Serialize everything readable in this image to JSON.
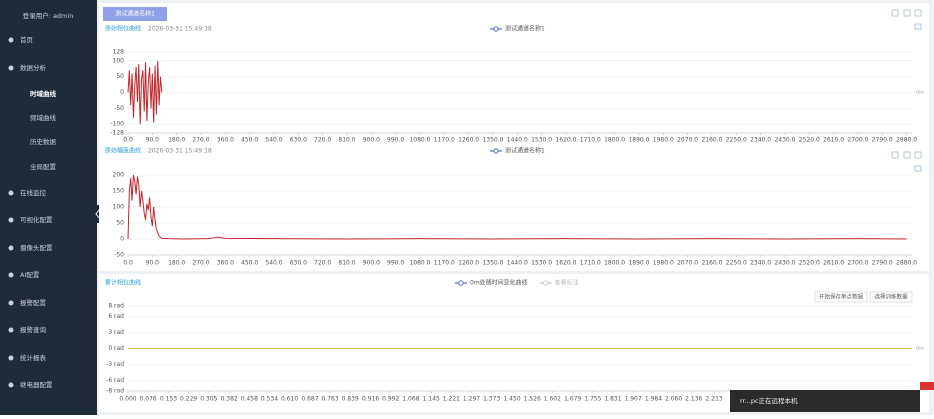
{
  "sidebar": {
    "user": "登录用户: admin",
    "menu": [
      "首页",
      "数据分析",
      "时域曲线",
      "频域曲线",
      "历史数据",
      "全局配置",
      "在线监控",
      "可视化配置",
      "摄像头配置",
      "AI配置",
      "报警配置",
      "报警查询",
      "统计报表",
      "继电器配置"
    ]
  },
  "tab": "测试通道名称1",
  "toast": "rr...pc正在远程本机",
  "chart_data": [
    {
      "type": "line",
      "title": "原始相位曲线",
      "subtitle": "2026-03-31 15:49:18",
      "annotation": "0m",
      "legend_color": "#5470c6",
      "x": [
        0,
        5,
        10,
        15,
        20,
        25,
        30,
        35,
        40,
        45,
        50,
        55,
        60,
        65,
        70,
        75,
        80,
        85,
        90,
        95,
        100,
        105,
        110,
        115,
        120,
        125
      ],
      "series": [
        {
          "name": "测试通道名称1",
          "color": "#c0262d",
          "values": [
            0,
            70,
            -40,
            60,
            -80,
            20,
            80,
            -30,
            90,
            -100,
            40,
            70,
            -60,
            95,
            -90,
            30,
            80,
            -50,
            60,
            -95,
            85,
            -70,
            100,
            -40,
            50,
            0
          ]
        }
      ],
      "xlim": [
        0,
        2900
      ],
      "ylim": [
        -128,
        128
      ],
      "yticks": [
        128,
        100,
        50,
        0,
        -50,
        -100,
        -128
      ],
      "xticks": [
        {
          "value": 0,
          "label": "0.0"
        },
        {
          "value": 90,
          "label": "90.0"
        },
        {
          "value": 180,
          "label": "180.0"
        },
        {
          "value": 270,
          "label": "270.0"
        },
        {
          "value": 360,
          "label": "360.0"
        },
        {
          "value": 450,
          "label": "450.0"
        },
        {
          "value": 540,
          "label": "540.0"
        },
        {
          "value": 630,
          "label": "630.0"
        },
        {
          "value": 720,
          "label": "720.0"
        },
        {
          "value": 810,
          "label": "810.0"
        },
        {
          "value": 900,
          "label": "900.0"
        },
        {
          "value": 990,
          "label": "990.0"
        },
        {
          "value": 1080,
          "label": "1080.0"
        },
        {
          "value": 1170,
          "label": "1170.0"
        },
        {
          "value": 1260,
          "label": "1260.0"
        },
        {
          "value": 1350,
          "label": "1350.0"
        },
        {
          "value": 1440,
          "label": "1440.0"
        },
        {
          "value": 1530,
          "label": "1530.0"
        },
        {
          "value": 1620,
          "label": "1620.0"
        },
        {
          "value": 1710,
          "label": "1710.0"
        },
        {
          "value": 1800,
          "label": "1800.0"
        },
        {
          "value": 1890,
          "label": "1890.0"
        },
        {
          "value": 1980,
          "label": "1980.0"
        },
        {
          "value": 2070,
          "label": "2070.0"
        },
        {
          "value": 2160,
          "label": "2160.0"
        },
        {
          "value": 2250,
          "label": "2250.0"
        },
        {
          "value": 2340,
          "label": "2340.0"
        },
        {
          "value": 2430,
          "label": "2430.0"
        },
        {
          "value": 2520,
          "label": "2520.0"
        },
        {
          "value": 2610,
          "label": "2610.0"
        },
        {
          "value": 2700,
          "label": "2700.0"
        },
        {
          "value": 2790,
          "label": "2790.0"
        },
        {
          "value": 2880,
          "label": "2880.0"
        }
      ],
      "grid": true
    },
    {
      "type": "line",
      "title": "原始幅度曲线",
      "subtitle": "2026-03-31 15:49:18",
      "legend_color": "#5470c6",
      "x": [
        0,
        5,
        10,
        15,
        20,
        25,
        30,
        35,
        40,
        45,
        50,
        55,
        60,
        65,
        70,
        75,
        80,
        85,
        90,
        95,
        100,
        105,
        110,
        115,
        120,
        125,
        150,
        200,
        300,
        330,
        360,
        540,
        810,
        1080,
        1350,
        1620,
        1890,
        2160,
        2430,
        2700,
        2880
      ],
      "series": [
        {
          "name": "测试通道名称1",
          "color": "#c0262d",
          "values": [
            0,
            150,
            190,
            120,
            200,
            180,
            140,
            195,
            170,
            100,
            150,
            120,
            80,
            60,
            110,
            90,
            130,
            70,
            40,
            100,
            60,
            30,
            20,
            10,
            5,
            2,
            1,
            0,
            1,
            6,
            2,
            1,
            0,
            1,
            0,
            1,
            0,
            1,
            0,
            1,
            0
          ]
        }
      ],
      "xlim": [
        0,
        2900
      ],
      "ylim": [
        -50,
        200
      ],
      "yticks": [
        200,
        150,
        100,
        50,
        0,
        -50
      ],
      "xticks": [
        {
          "value": 0,
          "label": "0.0"
        },
        {
          "value": 90,
          "label": "90.0"
        },
        {
          "value": 180,
          "label": "180.0"
        },
        {
          "value": 270,
          "label": "270.0"
        },
        {
          "value": 360,
          "label": "360.0"
        },
        {
          "value": 450,
          "label": "450.0"
        },
        {
          "value": 540,
          "label": "540.0"
        },
        {
          "value": 630,
          "label": "630.0"
        },
        {
          "value": 720,
          "label": "720.0"
        },
        {
          "value": 810,
          "label": "810.0"
        },
        {
          "value": 900,
          "label": "900.0"
        },
        {
          "value": 990,
          "label": "990.0"
        },
        {
          "value": 1080,
          "label": "1080.0"
        },
        {
          "value": 1170,
          "label": "1170.0"
        },
        {
          "value": 1260,
          "label": "1260.0"
        },
        {
          "value": 1350,
          "label": "1350.0"
        },
        {
          "value": 1440,
          "label": "1440.0"
        },
        {
          "value": 1530,
          "label": "1530.0"
        },
        {
          "value": 1620,
          "label": "1620.0"
        },
        {
          "value": 1710,
          "label": "1710.0"
        },
        {
          "value": 1800,
          "label": "1800.0"
        },
        {
          "value": 1890,
          "label": "1890.0"
        },
        {
          "value": 1980,
          "label": "1980.0"
        },
        {
          "value": 2070,
          "label": "2070.0"
        },
        {
          "value": 2160,
          "label": "2160.0"
        },
        {
          "value": 2250,
          "label": "2250.0"
        },
        {
          "value": 2340,
          "label": "2340.0"
        },
        {
          "value": 2430,
          "label": "2430.0"
        },
        {
          "value": 2520,
          "label": "2520.0"
        },
        {
          "value": 2610,
          "label": "2610.0"
        },
        {
          "value": 2700,
          "label": "2700.0"
        },
        {
          "value": 2790,
          "label": "2790.0"
        },
        {
          "value": 2880,
          "label": "2880.0"
        }
      ],
      "grid": true
    },
    {
      "type": "line",
      "title": "累计相位曲线",
      "annotation": "0m",
      "legend_color": "#5470c6",
      "buttons": [
        "开始保存单点数据",
        "选择训练数据"
      ],
      "x": [
        0,
        0.5,
        1,
        1.5,
        2,
        2.5,
        2.96
      ],
      "series": [
        {
          "name": "0m处随时间变化曲线",
          "color": "#c8c040",
          "values": [
            0,
            0,
            0,
            0,
            0,
            0,
            0
          ]
        },
        {
          "name": "查看标注",
          "color": "#cccccc",
          "values": [
            null,
            null,
            null,
            null,
            null,
            null,
            null
          ]
        }
      ],
      "xlim": [
        0,
        2.96
      ],
      "ylim": [
        -8,
        8
      ],
      "yticks": [
        {
          "value": 8,
          "label": "8 rad"
        },
        {
          "value": 6,
          "label": "6 rad"
        },
        {
          "value": 3,
          "label": "3 rad"
        },
        {
          "value": 0,
          "label": "0 rad"
        },
        {
          "value": -3,
          "label": "-3 rad"
        },
        {
          "value": -6,
          "label": "-6 rad"
        },
        {
          "value": -8,
          "label": "-8 rad"
        }
      ],
      "xticks": [
        {
          "value": 0,
          "label": "0.000"
        },
        0.076,
        0.153,
        0.229,
        0.305,
        0.382,
        0.458,
        0.534,
        {
          "value": 0.61,
          "label": "0.610"
        },
        0.687,
        0.763,
        0.839,
        0.916,
        0.992,
        1.068,
        1.145,
        1.221,
        1.297,
        1.373,
        {
          "value": 1.45,
          "label": "1.450"
        },
        1.526,
        1.602,
        1.679,
        1.755,
        1.831,
        1.907,
        1.984,
        {
          "value": 2.06,
          "label": "2.060"
        },
        2.136,
        2.213
      ],
      "grid": true
    }
  ]
}
